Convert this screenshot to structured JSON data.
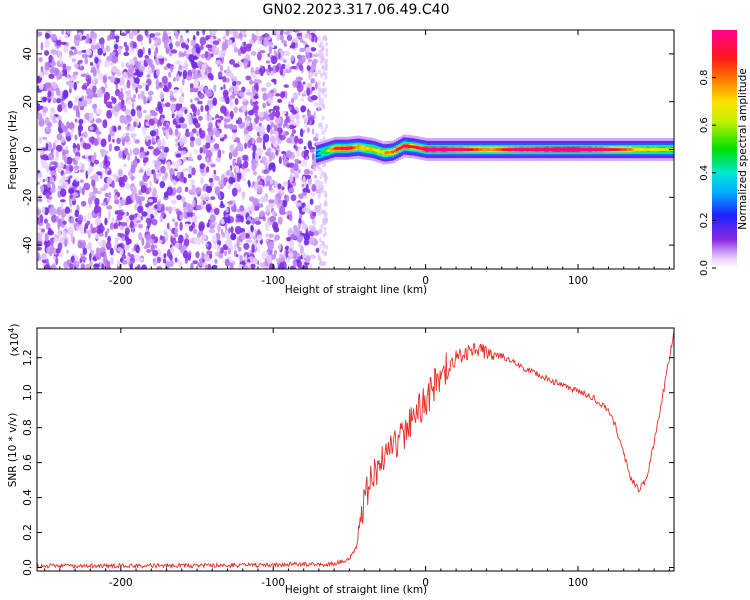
{
  "title": "GN02.2023.317.06.49.C40",
  "chart_data": [
    {
      "type": "heatmap",
      "xlabel": "Height of straight line (km)",
      "ylabel": "Frequency (Hz)",
      "xlim": [
        -255,
        163
      ],
      "ylim": [
        -50,
        50
      ],
      "xticks": [
        -200,
        -100,
        0,
        100
      ],
      "yticks": [
        -40,
        -20,
        0,
        20,
        40
      ],
      "colorbar": {
        "label": "Normalized spectral amplitude",
        "range": [
          0,
          1
        ],
        "ticks": [
          "0.0",
          "0.2",
          "0.4",
          "0.6",
          "0.8"
        ],
        "tick_values": [
          0,
          0.2,
          0.4,
          0.6,
          0.8
        ],
        "colormap": "rainbow (white-purple-blue-cyan-green-yellow-red-magenta)"
      },
      "noise_region": {
        "x_range": [
          -255,
          -70
        ],
        "amplitude_range": [
          0,
          0.3
        ]
      },
      "signal_band": {
        "start_x": -72,
        "center_frequency": 0,
        "frequency_half_width": 2,
        "points": [
          {
            "x": -70,
            "f": -1.5,
            "amp": 0.3
          },
          {
            "x": -60,
            "f": 0.5,
            "amp": 0.7
          },
          {
            "x": -52,
            "f": 0.5,
            "amp": 0.8
          },
          {
            "x": -45,
            "f": 1.0,
            "amp": 0.6
          },
          {
            "x": -35,
            "f": 0.0,
            "amp": 0.55
          },
          {
            "x": -28,
            "f": -1.5,
            "amp": 0.6
          },
          {
            "x": -22,
            "f": -1.0,
            "amp": 0.65
          },
          {
            "x": -15,
            "f": 1.5,
            "amp": 0.8
          },
          {
            "x": -8,
            "f": 1.0,
            "amp": 0.7
          },
          {
            "x": 0,
            "f": 0.0,
            "amp": 0.85
          },
          {
            "x": 20,
            "f": 0.0,
            "amp": 0.8
          },
          {
            "x": 40,
            "f": 0.0,
            "amp": 0.6
          },
          {
            "x": 60,
            "f": 0.0,
            "amp": 0.8
          },
          {
            "x": 100,
            "f": 0.0,
            "amp": 0.85
          },
          {
            "x": 120,
            "f": 0.0,
            "amp": 0.75
          },
          {
            "x": 140,
            "f": 0.0,
            "amp": 0.55
          },
          {
            "x": 163,
            "f": 0.0,
            "amp": 0.5
          }
        ]
      }
    },
    {
      "type": "line",
      "xlabel": "Height of straight line (km)",
      "ylabel": "SNR (10 * v/v)",
      "yscale_label": "(x10",
      "yscale_exponent": "4",
      "yscale_suffix": ")",
      "xlim": [
        -255,
        163
      ],
      "ylim": [
        -0.02,
        1.37
      ],
      "xticks": [
        -200,
        -100,
        0,
        100
      ],
      "yticks": [
        0.0,
        0.2,
        0.4,
        0.6,
        0.8,
        1.0,
        1.2
      ],
      "ytick_labels": [
        "0.0",
        "0.2",
        "0.4",
        "0.6",
        "0.8",
        "1.0",
        "1.2"
      ],
      "color": "#e8302a",
      "series": [
        {
          "x": [
            -255,
            -150,
            -60,
            -50,
            -45,
            -42,
            -40,
            -35,
            -30,
            -20,
            -10,
            0,
            10,
            20,
            30,
            40,
            50,
            60,
            70,
            80,
            90,
            100,
            110,
            120,
            125,
            130,
            135,
            140,
            145,
            150,
            155,
            160,
            163
          ],
          "y": [
            0.01,
            0.01,
            0.02,
            0.05,
            0.12,
            0.28,
            0.42,
            0.5,
            0.6,
            0.7,
            0.82,
            0.95,
            1.1,
            1.2,
            1.24,
            1.24,
            1.21,
            1.16,
            1.12,
            1.08,
            1.04,
            1.01,
            0.97,
            0.9,
            0.8,
            0.65,
            0.5,
            0.45,
            0.5,
            0.72,
            0.95,
            1.2,
            1.35
          ]
        }
      ]
    }
  ]
}
